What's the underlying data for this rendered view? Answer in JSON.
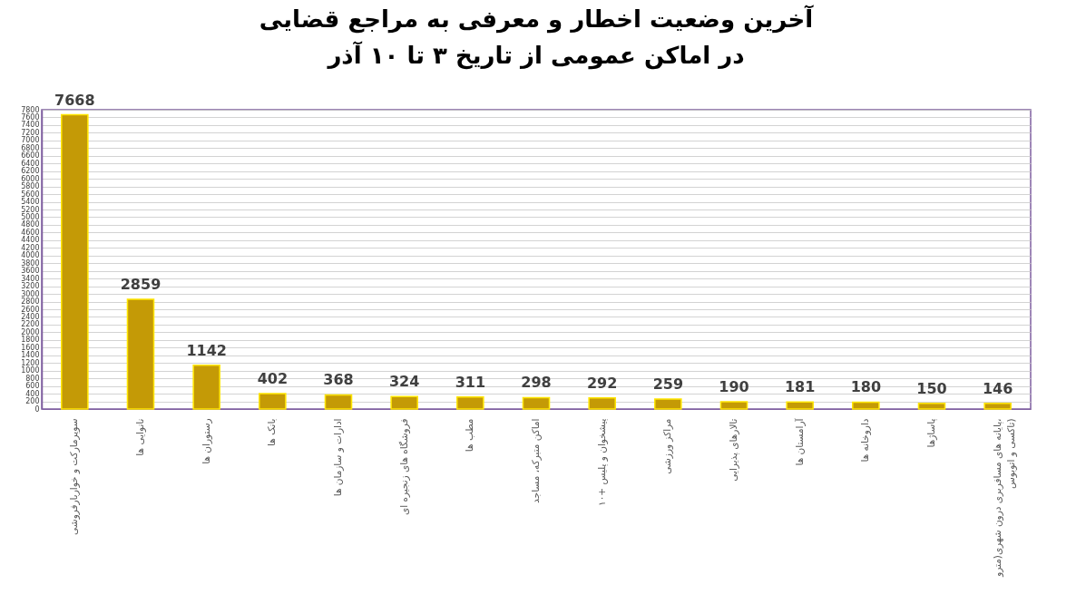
{
  "chart_data": {
    "type": "bar",
    "title": "آخرین وضعیت اخطار و معرفی به مراجع قضایی",
    "subtitle": "در اماکن عمومی از تاریخ ۳ تا ۱۰ آذر",
    "categories": [
      "سوپرمارکت و خواربارفروشی",
      "نانوایی ها",
      "رستوران ها",
      "بانک ها",
      "ادارات و سازمان ها",
      "فروشگاه های زنجیره ای",
      "مطب ها",
      "اماکن متبرکه، مساجد",
      "پیشخوان و پلیس +۱۰",
      "مراکز ورزشی",
      "تالارهای پذیرایی",
      "آرامستان ها",
      "داروخانه ها",
      "پاساژها",
      "پایانه های مسافربری درون شهری(مترو، تاکسی و اتوبوس)"
    ],
    "values": [
      7668,
      2859,
      1142,
      402,
      368,
      324,
      311,
      298,
      292,
      259,
      190,
      181,
      180,
      150,
      146
    ],
    "color": "#c49a06",
    "ylim": [
      0,
      7800
    ],
    "yticks": [
      0,
      200,
      400,
      600,
      800,
      1000,
      1200,
      1400,
      1600,
      1800,
      2000,
      2200,
      2400,
      2600,
      2800,
      3000,
      3200,
      3400,
      3600,
      3800,
      4000,
      4200,
      4400,
      4600,
      4800,
      5000,
      5200,
      5400,
      5600,
      5800,
      6000,
      6200,
      6400,
      6600,
      6800,
      7000,
      7200,
      7400,
      7600,
      7800
    ],
    "grid": "y",
    "data_labels": true
  }
}
